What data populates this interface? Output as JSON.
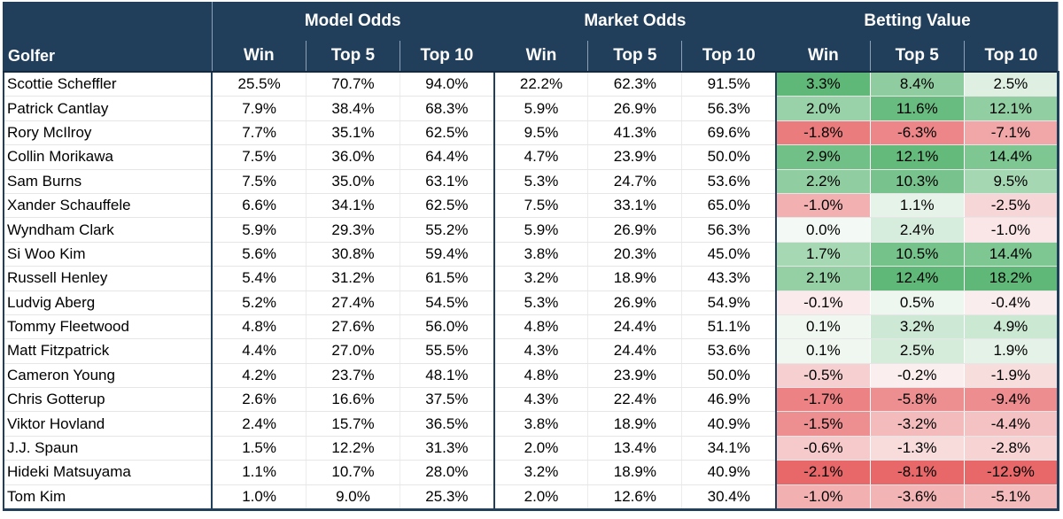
{
  "header": {
    "groups": [
      "Model Odds",
      "Market Odds",
      "Betting Value"
    ],
    "golfer_label": "Golfer",
    "sub_labels": [
      "Win",
      "Top 5",
      "Top 10",
      "Win",
      "Top 5",
      "Top 10",
      "Win",
      "Top 5",
      "Top 10"
    ]
  },
  "rows": [
    {
      "golfer": "Scottie Scheffler",
      "cells": [
        "25.5%",
        "70.7%",
        "94.0%",
        "22.2%",
        "62.3%",
        "91.5%",
        "3.3%",
        "8.4%",
        "2.5%"
      ]
    },
    {
      "golfer": "Patrick Cantlay",
      "cells": [
        "7.9%",
        "38.4%",
        "68.3%",
        "5.9%",
        "26.9%",
        "56.3%",
        "2.0%",
        "11.6%",
        "12.1%"
      ]
    },
    {
      "golfer": "Rory McIlroy",
      "cells": [
        "7.7%",
        "35.1%",
        "62.5%",
        "9.5%",
        "41.3%",
        "69.6%",
        "-1.8%",
        "-6.3%",
        "-7.1%"
      ]
    },
    {
      "golfer": "Collin Morikawa",
      "cells": [
        "7.5%",
        "36.0%",
        "64.4%",
        "4.7%",
        "23.9%",
        "50.0%",
        "2.9%",
        "12.1%",
        "14.4%"
      ]
    },
    {
      "golfer": "Sam Burns",
      "cells": [
        "7.5%",
        "35.0%",
        "63.1%",
        "5.3%",
        "24.7%",
        "53.6%",
        "2.2%",
        "10.3%",
        "9.5%"
      ]
    },
    {
      "golfer": "Xander Schauffele",
      "cells": [
        "6.6%",
        "34.1%",
        "62.5%",
        "7.5%",
        "33.1%",
        "65.0%",
        "-1.0%",
        "1.1%",
        "-2.5%"
      ]
    },
    {
      "golfer": "Wyndham Clark",
      "cells": [
        "5.9%",
        "29.3%",
        "55.2%",
        "5.9%",
        "26.9%",
        "56.3%",
        "0.0%",
        "2.4%",
        "-1.0%"
      ]
    },
    {
      "golfer": "Si Woo Kim",
      "cells": [
        "5.6%",
        "30.8%",
        "59.4%",
        "3.8%",
        "20.3%",
        "45.0%",
        "1.7%",
        "10.5%",
        "14.4%"
      ]
    },
    {
      "golfer": "Russell Henley",
      "cells": [
        "5.4%",
        "31.2%",
        "61.5%",
        "3.2%",
        "18.9%",
        "43.3%",
        "2.1%",
        "12.4%",
        "18.2%"
      ]
    },
    {
      "golfer": "Ludvig Aberg",
      "cells": [
        "5.2%",
        "27.4%",
        "54.5%",
        "5.3%",
        "26.9%",
        "54.9%",
        "-0.1%",
        "0.5%",
        "-0.4%"
      ]
    },
    {
      "golfer": "Tommy Fleetwood",
      "cells": [
        "4.8%",
        "27.6%",
        "56.0%",
        "4.8%",
        "24.4%",
        "51.1%",
        "0.1%",
        "3.2%",
        "4.9%"
      ]
    },
    {
      "golfer": "Matt Fitzpatrick",
      "cells": [
        "4.4%",
        "27.0%",
        "55.5%",
        "4.3%",
        "24.4%",
        "53.6%",
        "0.1%",
        "2.5%",
        "1.9%"
      ]
    },
    {
      "golfer": "Cameron Young",
      "cells": [
        "4.2%",
        "23.7%",
        "48.1%",
        "4.8%",
        "23.9%",
        "50.0%",
        "-0.5%",
        "-0.2%",
        "-1.9%"
      ]
    },
    {
      "golfer": "Chris Gotterup",
      "cells": [
        "2.6%",
        "16.6%",
        "37.5%",
        "4.3%",
        "22.4%",
        "46.9%",
        "-1.7%",
        "-5.8%",
        "-9.4%"
      ]
    },
    {
      "golfer": "Viktor Hovland",
      "cells": [
        "2.4%",
        "15.7%",
        "36.5%",
        "3.8%",
        "18.9%",
        "40.9%",
        "-1.5%",
        "-3.2%",
        "-4.4%"
      ]
    },
    {
      "golfer": "J.J. Spaun",
      "cells": [
        "1.5%",
        "12.2%",
        "31.3%",
        "2.0%",
        "13.4%",
        "34.1%",
        "-0.6%",
        "-1.3%",
        "-2.8%"
      ]
    },
    {
      "golfer": "Hideki Matsuyama",
      "cells": [
        "1.1%",
        "10.7%",
        "28.0%",
        "3.2%",
        "18.9%",
        "40.9%",
        "-2.1%",
        "-8.1%",
        "-12.9%"
      ]
    },
    {
      "golfer": "Tom Kim",
      "cells": [
        "1.0%",
        "9.0%",
        "25.3%",
        "2.0%",
        "12.6%",
        "30.4%",
        "-1.0%",
        "-3.6%",
        "-5.1%"
      ]
    }
  ],
  "colors": {
    "header_bg": "#213f5b",
    "header_text": "#ffffff",
    "positive_scale": [
      "#f3f9f4",
      "#5fb878"
    ],
    "negative_scale": [
      "#fbf1f1",
      "#e8686a"
    ]
  }
}
